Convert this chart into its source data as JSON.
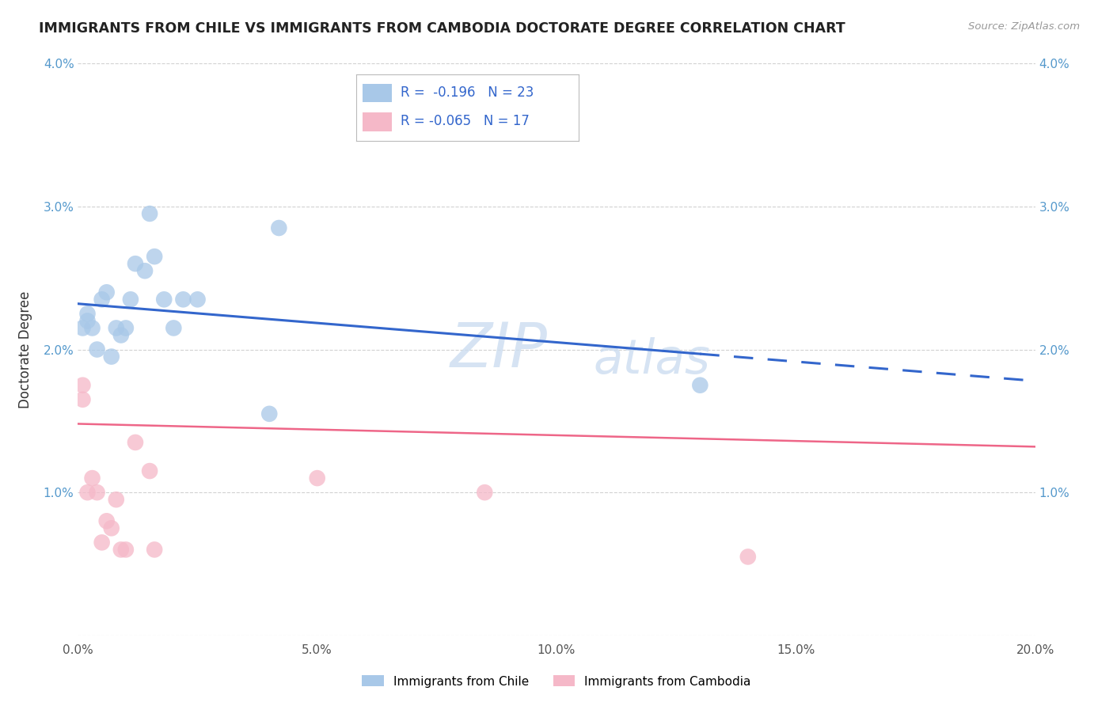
{
  "title": "IMMIGRANTS FROM CHILE VS IMMIGRANTS FROM CAMBODIA DOCTORATE DEGREE CORRELATION CHART",
  "source": "Source: ZipAtlas.com",
  "ylabel": "Doctorate Degree",
  "xlim": [
    0.0,
    0.2
  ],
  "ylim": [
    0.0,
    0.04
  ],
  "xticks": [
    0.0,
    0.05,
    0.1,
    0.15,
    0.2
  ],
  "yticks": [
    0.0,
    0.01,
    0.02,
    0.03,
    0.04
  ],
  "xtick_labels": [
    "0.0%",
    "5.0%",
    "10.0%",
    "15.0%",
    "20.0%"
  ],
  "ytick_labels_left": [
    "",
    "1.0%",
    "2.0%",
    "3.0%",
    "4.0%"
  ],
  "ytick_labels_right": [
    "",
    "1.0%",
    "2.0%",
    "3.0%",
    "4.0%"
  ],
  "chile_color": "#a8c8e8",
  "cambodia_color": "#f5b8c8",
  "chile_line_color": "#3366cc",
  "cambodia_line_color": "#ee6688",
  "watermark_zip": "ZIP",
  "watermark_atlas": "atlas",
  "legend_chile_R": "-0.196",
  "legend_chile_N": "23",
  "legend_cambodia_R": "-0.065",
  "legend_cambodia_N": "17",
  "chile_line_x0": 0.0,
  "chile_line_y0": 0.0232,
  "chile_line_x1": 0.2,
  "chile_line_y1": 0.0178,
  "chile_line_solid_end": 0.13,
  "cambodia_line_x0": 0.0,
  "cambodia_line_y0": 0.0148,
  "cambodia_line_x1": 0.2,
  "cambodia_line_y1": 0.0132,
  "chile_x": [
    0.001,
    0.002,
    0.002,
    0.003,
    0.004,
    0.005,
    0.006,
    0.007,
    0.008,
    0.009,
    0.01,
    0.011,
    0.012,
    0.014,
    0.015,
    0.016,
    0.018,
    0.02,
    0.022,
    0.025,
    0.04,
    0.042,
    0.13
  ],
  "chile_y": [
    0.0215,
    0.022,
    0.0225,
    0.0215,
    0.02,
    0.0235,
    0.024,
    0.0195,
    0.0215,
    0.021,
    0.0215,
    0.0235,
    0.026,
    0.0255,
    0.0295,
    0.0265,
    0.0235,
    0.0215,
    0.0235,
    0.0235,
    0.0155,
    0.0285,
    0.0175
  ],
  "cambodia_x": [
    0.001,
    0.001,
    0.002,
    0.003,
    0.004,
    0.005,
    0.006,
    0.007,
    0.008,
    0.009,
    0.01,
    0.012,
    0.015,
    0.016,
    0.05,
    0.085,
    0.14
  ],
  "cambodia_y": [
    0.0175,
    0.0165,
    0.01,
    0.011,
    0.01,
    0.0065,
    0.008,
    0.0075,
    0.0095,
    0.006,
    0.006,
    0.0135,
    0.0115,
    0.006,
    0.011,
    0.01,
    0.0055
  ]
}
